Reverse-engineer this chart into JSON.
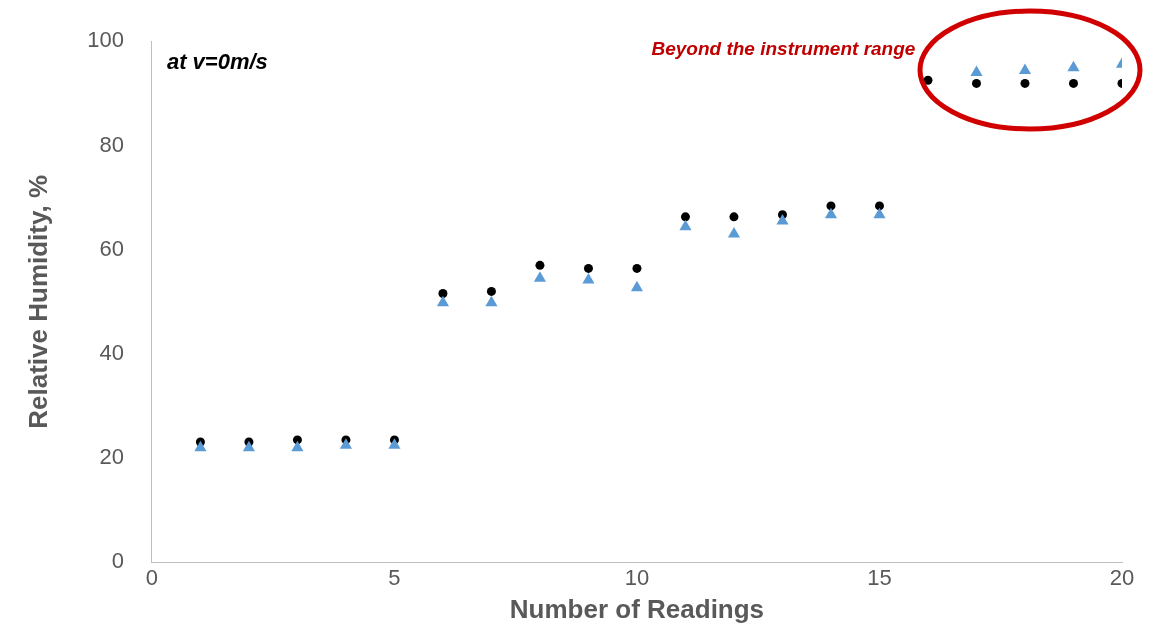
{
  "chart_data": {
    "type": "scatter",
    "xlabel": "Number of Readings",
    "ylabel": "Relative Humidity, %",
    "x": [
      1,
      2,
      3,
      4,
      5,
      6,
      7,
      8,
      9,
      10,
      11,
      12,
      13,
      14,
      15,
      16,
      17,
      18,
      19,
      20
    ],
    "series": [
      {
        "color": "#5b9bd5",
        "marker": "triangle",
        "values": [
          22.0,
          22.0,
          22.0,
          22.5,
          22.5,
          49.8,
          49.8,
          54.5,
          54.2,
          52.7,
          64.4,
          63.0,
          65.5,
          66.7,
          66.7,
          null,
          94.0,
          94.4,
          94.9,
          95.6
        ]
      },
      {
        "color": "#000000",
        "marker": "circle",
        "values": [
          23.1,
          23.1,
          23.5,
          23.5,
          23.5,
          51.6,
          52.0,
          57.0,
          56.4,
          56.4,
          66.3,
          66.3,
          66.7,
          68.4,
          68.4,
          92.5,
          91.9,
          91.9,
          91.9,
          91.9
        ]
      }
    ],
    "xlim": [
      0,
      20
    ],
    "xticks": [
      0,
      5,
      10,
      15,
      20
    ],
    "ylim": [
      0,
      100
    ],
    "yticks": [
      0,
      20,
      40,
      60,
      80,
      100
    ],
    "annotations": [
      "at v=0m/s",
      "Beyond the instrument range"
    ]
  }
}
